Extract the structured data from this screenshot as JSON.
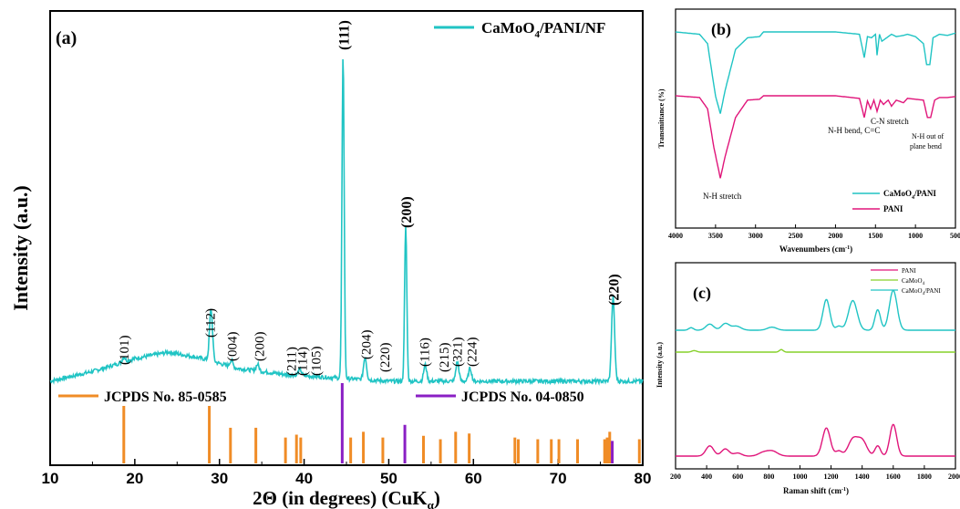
{
  "colors": {
    "teal": "#20C4C4",
    "orange": "#F08C26",
    "purple": "#8A1FC4",
    "pink": "#E0157A",
    "green": "#86D02A"
  },
  "chart_data": [
    {
      "panel": "(a)",
      "type": "line",
      "xlabel": "2Θ (in degrees) (CuKα)",
      "ylabel": "Intensity (a.u.)",
      "xlim": [
        10,
        80
      ],
      "xticks": [
        10,
        20,
        30,
        40,
        50,
        60,
        70,
        80
      ],
      "legend": "CaMoO4/PANI/NF",
      "legend_position": "top-right",
      "series": [
        {
          "name": "CaMoO4/PANI/NF",
          "color": "#20C4C4",
          "baseline": [
            [
              10,
              0.02
            ],
            [
              15,
              0.05
            ],
            [
              20,
              0.09
            ],
            [
              24,
              0.11
            ],
            [
              28,
              0.09
            ],
            [
              32,
              0.06
            ],
            [
              38,
              0.04
            ],
            [
              44,
              0.03
            ],
            [
              50,
              0.02
            ],
            [
              60,
              0.02
            ],
            [
              70,
              0.02
            ],
            [
              80,
              0.02
            ]
          ],
          "peaks": [
            [
              18.7,
              0.015
            ],
            [
              29.0,
              0.16
            ],
            [
              31.4,
              0.02
            ],
            [
              34.5,
              0.02
            ],
            [
              39.5,
              0.02
            ],
            [
              44.6,
              1.0
            ],
            [
              47.2,
              0.07
            ],
            [
              52.0,
              0.48
            ],
            [
              54.3,
              0.05
            ],
            [
              58.1,
              0.06
            ],
            [
              59.6,
              0.04
            ],
            [
              76.5,
              0.26
            ]
          ]
        }
      ],
      "orange_labels": [
        {
          "text": "(101)",
          "x": 18.7
        },
        {
          "text": "(112)",
          "x": 28.9
        },
        {
          "text": "(004)",
          "x": 31.5
        },
        {
          "text": "(200)",
          "x": 34.7
        },
        {
          "text": "(211)",
          "x": 38.5
        },
        {
          "text": "(114)",
          "x": 39.8
        },
        {
          "text": "(105)",
          "x": 41.4
        },
        {
          "text": "(204)",
          "x": 47.3
        },
        {
          "text": "(220)",
          "x": 49.5
        },
        {
          "text": "(116)",
          "x": 54.2
        },
        {
          "text": "(215)",
          "x": 56.5
        },
        {
          "text": "(321)",
          "x": 58.1
        },
        {
          "text": "(224)",
          "x": 59.8
        }
      ],
      "purple_labels": [
        {
          "text": "(111)",
          "x": 44.6
        },
        {
          "text": "(200)",
          "x": 52.0
        },
        {
          "text": "(220)",
          "x": 76.5
        }
      ],
      "ref_orange": {
        "label": "JCPDS No. 85-0585",
        "color": "#F08C26",
        "lines": [
          [
            18.7,
            1.0
          ],
          [
            28.8,
            1.0
          ],
          [
            31.3,
            0.62
          ],
          [
            34.3,
            0.62
          ],
          [
            37.8,
            0.45
          ],
          [
            39.1,
            0.5
          ],
          [
            39.6,
            0.45
          ],
          [
            45.5,
            0.45
          ],
          [
            47.0,
            0.55
          ],
          [
            49.3,
            0.45
          ],
          [
            54.1,
            0.48
          ],
          [
            56.1,
            0.42
          ],
          [
            57.9,
            0.55
          ],
          [
            59.5,
            0.52
          ],
          [
            64.9,
            0.45
          ],
          [
            65.3,
            0.42
          ],
          [
            67.6,
            0.42
          ],
          [
            69.2,
            0.42
          ],
          [
            70.1,
            0.42
          ],
          [
            72.3,
            0.42
          ],
          [
            75.5,
            0.42
          ],
          [
            75.8,
            0.45
          ],
          [
            76.1,
            0.55
          ],
          [
            79.6,
            0.42
          ]
        ]
      },
      "ref_purple": {
        "label": "JCPDS No. 04-0850",
        "color": "#8A1FC4",
        "lines": [
          [
            44.5,
            1.0
          ],
          [
            51.9,
            0.48
          ],
          [
            76.4,
            0.28
          ]
        ]
      }
    },
    {
      "panel": "(b)",
      "type": "line",
      "xlabel": "Wavenumbers (cm-1)",
      "ylabel": "Transmittance (%)",
      "xlim": [
        4000,
        500
      ],
      "xticks": [
        4000,
        3500,
        3000,
        2500,
        2000,
        1500,
        1000,
        500
      ],
      "legend_position": "bottom-right",
      "annotations": [
        "N-H stretch",
        "C-N stretch",
        "N-H bend, C=C",
        "N-H out of",
        "plane bend"
      ],
      "series": [
        {
          "name": "CaMoO4/PANI",
          "color": "#20C4C4",
          "offset": 0.85,
          "points": [
            [
              4000,
              0
            ],
            [
              3700,
              -0.02
            ],
            [
              3600,
              -0.1
            ],
            [
              3500,
              -0.55
            ],
            [
              3440,
              -0.7
            ],
            [
              3380,
              -0.5
            ],
            [
              3250,
              -0.15
            ],
            [
              3100,
              -0.05
            ],
            [
              2950,
              -0.04
            ],
            [
              2900,
              0
            ],
            [
              2000,
              0
            ],
            [
              1700,
              -0.02
            ],
            [
              1640,
              -0.22
            ],
            [
              1600,
              -0.04
            ],
            [
              1550,
              -0.05
            ],
            [
              1500,
              -0.02
            ],
            [
              1480,
              -0.2
            ],
            [
              1450,
              -0.02
            ],
            [
              1420,
              -0.08
            ],
            [
              1380,
              -0.06
            ],
            [
              1300,
              -0.02
            ],
            [
              1240,
              -0.04
            ],
            [
              1150,
              -0.03
            ],
            [
              1100,
              -0.02
            ],
            [
              1000,
              -0.04
            ],
            [
              900,
              -0.1
            ],
            [
              860,
              -0.28
            ],
            [
              820,
              -0.28
            ],
            [
              780,
              -0.05
            ],
            [
              700,
              -0.02
            ],
            [
              600,
              -0.03
            ],
            [
              500,
              -0.01
            ]
          ]
        },
        {
          "name": "PANI",
          "color": "#E0157A",
          "offset": 0.0,
          "points": [
            [
              4000,
              0
            ],
            [
              3700,
              -0.02
            ],
            [
              3600,
              -0.15
            ],
            [
              3520,
              -0.6
            ],
            [
              3440,
              -0.95
            ],
            [
              3380,
              -0.7
            ],
            [
              3250,
              -0.25
            ],
            [
              3100,
              -0.05
            ],
            [
              2950,
              -0.04
            ],
            [
              2900,
              0
            ],
            [
              2000,
              0
            ],
            [
              1700,
              -0.03
            ],
            [
              1640,
              -0.25
            ],
            [
              1600,
              -0.06
            ],
            [
              1560,
              -0.15
            ],
            [
              1520,
              -0.05
            ],
            [
              1480,
              -0.18
            ],
            [
              1440,
              -0.05
            ],
            [
              1400,
              -0.1
            ],
            [
              1340,
              -0.05
            ],
            [
              1300,
              -0.12
            ],
            [
              1240,
              -0.05
            ],
            [
              1150,
              -0.08
            ],
            [
              1100,
              -0.03
            ],
            [
              1000,
              -0.04
            ],
            [
              900,
              -0.05
            ],
            [
              850,
              -0.25
            ],
            [
              810,
              -0.25
            ],
            [
              760,
              -0.05
            ],
            [
              700,
              -0.02
            ],
            [
              600,
              -0.02
            ],
            [
              500,
              -0.01
            ]
          ]
        }
      ]
    },
    {
      "panel": "(c)",
      "type": "line",
      "xlabel": "Raman shift (cm-1)",
      "ylabel": "Intensity (a.u.)",
      "xlim": [
        200,
        2000
      ],
      "xticks": [
        200,
        400,
        600,
        800,
        1000,
        1200,
        1400,
        1600,
        1800,
        2000
      ],
      "legend_position": "top-right",
      "series": [
        {
          "name": "PANI",
          "color": "#E0157A",
          "base": 0.02,
          "peaks": [
            [
              420,
              0.2,
              25
            ],
            [
              520,
              0.14,
              25
            ],
            [
              600,
              0.06,
              25
            ],
            [
              760,
              0.06,
              30
            ],
            [
              820,
              0.1,
              35
            ],
            [
              1170,
              0.55,
              25
            ],
            [
              1250,
              0.1,
              20
            ],
            [
              1340,
              0.32,
              30
            ],
            [
              1400,
              0.3,
              30
            ],
            [
              1500,
              0.2,
              18
            ],
            [
              1600,
              0.62,
              22
            ]
          ]
        },
        {
          "name": "CaMoO4",
          "color": "#86D02A",
          "base": 0.59,
          "peaks": [
            [
              320,
              0.03,
              15
            ],
            [
              880,
              0.05,
              12
            ]
          ]
        },
        {
          "name": "CaMoO4/PANI",
          "color": "#20C4C4",
          "base": 0.71,
          "peaks": [
            [
              300,
              0.05,
              15
            ],
            [
              420,
              0.12,
              25
            ],
            [
              520,
              0.13,
              25
            ],
            [
              590,
              0.08,
              30
            ],
            [
              820,
              0.06,
              30
            ],
            [
              1170,
              0.6,
              22
            ],
            [
              1250,
              0.08,
              18
            ],
            [
              1340,
              0.58,
              28
            ],
            [
              1500,
              0.4,
              18
            ],
            [
              1600,
              0.78,
              25
            ]
          ]
        }
      ]
    }
  ]
}
